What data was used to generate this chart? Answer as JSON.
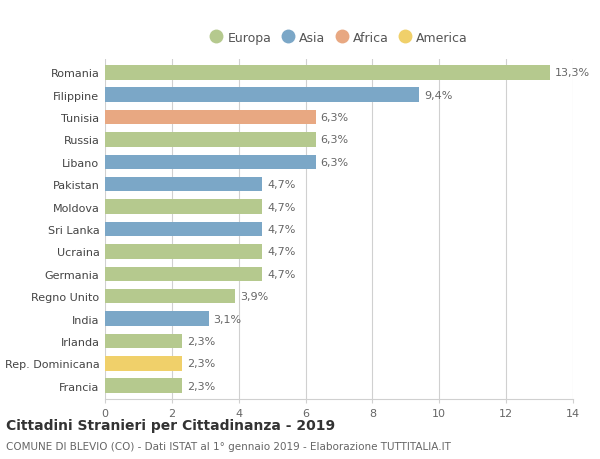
{
  "categories": [
    "Romania",
    "Filippine",
    "Tunisia",
    "Russia",
    "Libano",
    "Pakistan",
    "Moldova",
    "Sri Lanka",
    "Ucraina",
    "Germania",
    "Regno Unito",
    "India",
    "Irlanda",
    "Rep. Dominicana",
    "Francia"
  ],
  "values": [
    13.3,
    9.4,
    6.3,
    6.3,
    6.3,
    4.7,
    4.7,
    4.7,
    4.7,
    4.7,
    3.9,
    3.1,
    2.3,
    2.3,
    2.3
  ],
  "labels": [
    "13,3%",
    "9,4%",
    "6,3%",
    "6,3%",
    "6,3%",
    "4,7%",
    "4,7%",
    "4,7%",
    "4,7%",
    "4,7%",
    "3,9%",
    "3,1%",
    "2,3%",
    "2,3%",
    "2,3%"
  ],
  "continents": [
    "Europa",
    "Asia",
    "Africa",
    "Europa",
    "Asia",
    "Asia",
    "Europa",
    "Asia",
    "Europa",
    "Europa",
    "Europa",
    "Asia",
    "Europa",
    "America",
    "Europa"
  ],
  "colors": {
    "Europa": "#b5c98e",
    "Asia": "#7ba7c7",
    "Africa": "#e8a882",
    "America": "#f0d06a"
  },
  "legend_order": [
    "Europa",
    "Asia",
    "Africa",
    "America"
  ],
  "xlim": [
    0,
    14
  ],
  "xticks": [
    0,
    2,
    4,
    6,
    8,
    10,
    12,
    14
  ],
  "title": "Cittadini Stranieri per Cittadinanza - 2019",
  "subtitle": "COMUNE DI BLEVIO (CO) - Dati ISTAT al 1° gennaio 2019 - Elaborazione TUTTITALIA.IT",
  "background_color": "#ffffff",
  "grid_color": "#d0d0d0",
  "bar_height": 0.65,
  "label_fontsize": 8,
  "tick_fontsize": 8,
  "ytick_fontsize": 8,
  "title_fontsize": 10,
  "subtitle_fontsize": 7.5,
  "legend_fontsize": 9
}
